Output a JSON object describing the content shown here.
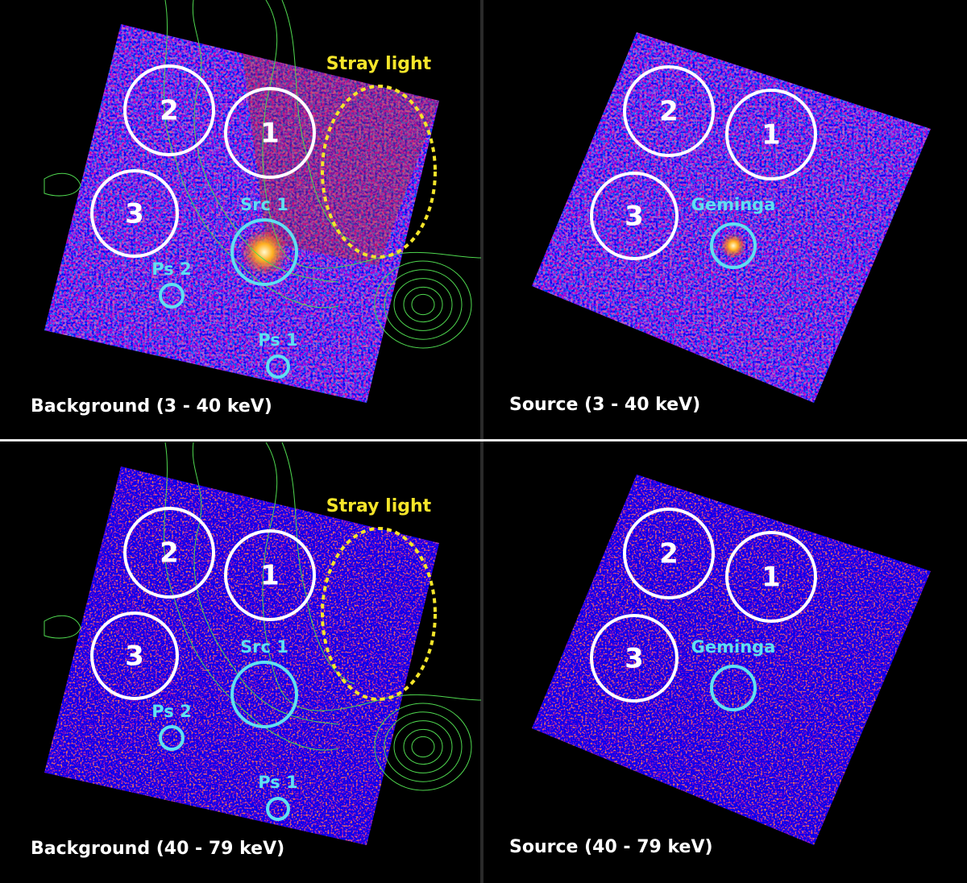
{
  "panels": [
    {
      "caption": "Background (3 - 40 keV)",
      "stray_light": "Stray light",
      "regions": [
        {
          "label": "2"
        },
        {
          "label": "1"
        },
        {
          "label": "3"
        }
      ],
      "sources": [
        {
          "label": "Src 1"
        },
        {
          "label": "Ps 2"
        },
        {
          "label": "Ps 1"
        }
      ]
    },
    {
      "caption": "Source (3 - 40 keV)",
      "regions": [
        {
          "label": "2"
        },
        {
          "label": "1"
        },
        {
          "label": "3"
        }
      ],
      "sources": [
        {
          "label": "Geminga"
        }
      ]
    },
    {
      "caption": "Background (40 - 79 keV)",
      "stray_light": "Stray light",
      "regions": [
        {
          "label": "2"
        },
        {
          "label": "1"
        },
        {
          "label": "3"
        }
      ],
      "sources": [
        {
          "label": "Src 1"
        },
        {
          "label": "Ps 2"
        },
        {
          "label": "Ps 1"
        }
      ]
    },
    {
      "caption": "Source (40 - 79 keV)",
      "regions": [
        {
          "label": "2"
        },
        {
          "label": "1"
        },
        {
          "label": "3"
        }
      ],
      "sources": [
        {
          "label": "Geminga"
        }
      ]
    }
  ]
}
